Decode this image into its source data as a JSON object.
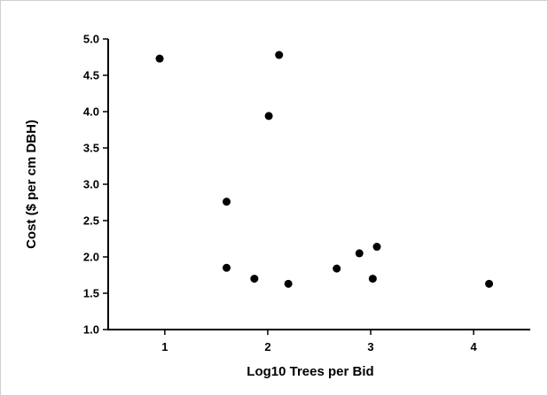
{
  "chart_data": {
    "type": "scatter",
    "title": "",
    "xlabel": "Log10 Trees per Bid",
    "ylabel": "Cost  ($ per cm  DBH)",
    "xlim": [
      0.45,
      4.55
    ],
    "ylim": [
      1.0,
      5.0
    ],
    "xticks": [
      1,
      2,
      3,
      4
    ],
    "xtick_labels": [
      "1",
      "2",
      "3",
      "4"
    ],
    "yticks": [
      1.0,
      1.5,
      2.0,
      2.5,
      3.0,
      3.5,
      4.0,
      4.5,
      5.0
    ],
    "ytick_labels": [
      "1.0",
      "1.5",
      "2.0",
      "2.5",
      "3.0",
      "3.5",
      "4.0",
      "4.5",
      "5.0"
    ],
    "grid": false,
    "legend": "none",
    "marker_color": "#000000",
    "series": [
      {
        "points": [
          {
            "x": 0.95,
            "y": 4.73
          },
          {
            "x": 1.6,
            "y": 2.76
          },
          {
            "x": 1.6,
            "y": 1.85
          },
          {
            "x": 1.87,
            "y": 1.7
          },
          {
            "x": 2.01,
            "y": 3.94
          },
          {
            "x": 2.11,
            "y": 4.78
          },
          {
            "x": 2.2,
            "y": 1.63
          },
          {
            "x": 2.67,
            "y": 1.84
          },
          {
            "x": 2.89,
            "y": 2.05
          },
          {
            "x": 3.02,
            "y": 1.7
          },
          {
            "x": 3.06,
            "y": 2.14
          },
          {
            "x": 4.15,
            "y": 1.63
          }
        ]
      }
    ]
  }
}
